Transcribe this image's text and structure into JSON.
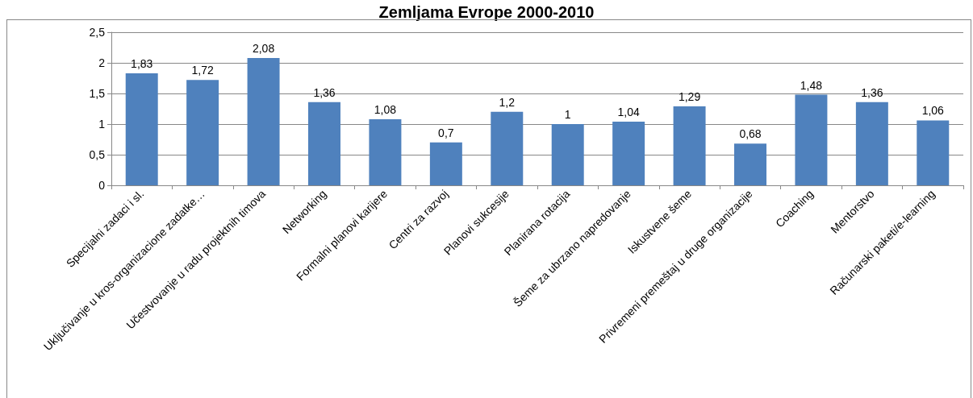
{
  "chart_data": {
    "type": "bar",
    "title": "Zemljama Evrope 2000-2010",
    "categories": [
      "Specijalni zadaci i sl.",
      "Uključivanje u kros-organizacione zadatke…",
      "Učestvovanje u radu projektnih timova",
      "Networking",
      "Formalni planovi karijere",
      "Centri za razvoj",
      "Planovi sukcesije",
      "Planirana rotacija",
      "Šeme za ubrzano napredovanje",
      "Iskustvene šeme",
      "Privremeni premeštaj u druge organizacije",
      "Coaching",
      "Mentorstvo",
      "Računarski paketi/e-learning"
    ],
    "values": [
      1.83,
      1.72,
      2.08,
      1.36,
      1.08,
      0.7,
      1.2,
      1,
      1.04,
      1.29,
      0.68,
      1.48,
      1.36,
      1.06
    ],
    "value_labels": [
      "1,83",
      "1,72",
      "2,08",
      "1,36",
      "1,08",
      "0,7",
      "1,2",
      "1",
      "1,04",
      "1,29",
      "0,68",
      "1,48",
      "1,36",
      "1,06"
    ],
    "color": "#4f81bd",
    "ylim": [
      0,
      2.5
    ],
    "yticks": [
      0,
      {
        "value": 0.5,
        "label": "0,5"
      },
      1,
      {
        "value": 1.5,
        "label": "1,5"
      },
      2,
      {
        "value": 2.5,
        "label": "2,5"
      }
    ],
    "grid": "y"
  }
}
